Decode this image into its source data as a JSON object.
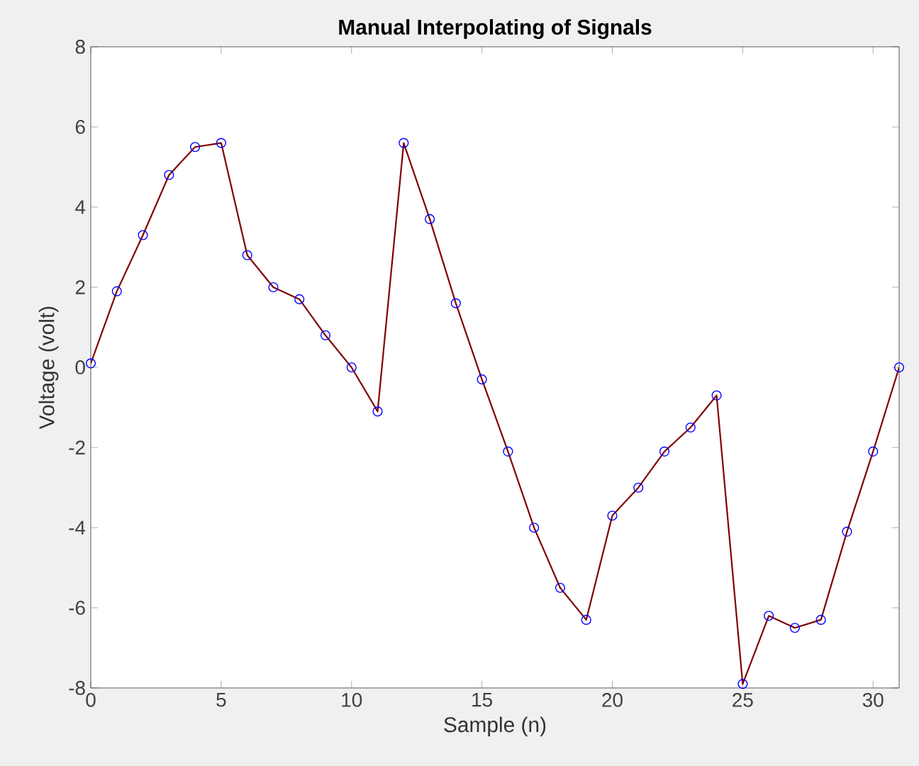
{
  "chart_data": {
    "type": "line",
    "title": "Manual Interpolating of Signals",
    "xlabel": "Sample (n)",
    "ylabel": "Voltage (volt)",
    "x": [
      0,
      1,
      2,
      3,
      4,
      5,
      6,
      7,
      8,
      9,
      10,
      11,
      12,
      13,
      14,
      15,
      16,
      17,
      18,
      19,
      20,
      21,
      22,
      23,
      24,
      25,
      26,
      27,
      28,
      29,
      30,
      31
    ],
    "series": [
      {
        "color": "#800000",
        "marker": "none",
        "line_style": "solid",
        "values": [
          0.1,
          1.9,
          3.3,
          4.8,
          5.5,
          5.6,
          2.8,
          2.0,
          1.7,
          0.8,
          0.0,
          -1.1,
          5.6,
          3.7,
          1.6,
          -0.3,
          -2.1,
          -4.0,
          -5.5,
          -6.3,
          -3.7,
          -3.0,
          -2.1,
          -1.5,
          -0.7,
          -7.9,
          -6.2,
          -6.5,
          -6.3,
          -4.1,
          -2.1,
          0.0
        ]
      },
      {
        "type": "scatter",
        "color": "#0000ff",
        "marker": "circle",
        "values": [
          0.1,
          1.9,
          3.3,
          4.8,
          5.5,
          5.6,
          2.8,
          2.0,
          1.7,
          0.8,
          0.0,
          -1.1,
          5.6,
          3.7,
          1.6,
          -0.3,
          -2.1,
          -4.0,
          -5.5,
          -6.3,
          -3.7,
          -3.0,
          -2.1,
          -1.5,
          -0.7,
          -7.9,
          -6.2,
          -6.5,
          -6.3,
          -4.1,
          -2.1,
          0.0
        ]
      }
    ],
    "xlim": [
      0,
      31
    ],
    "xticks": [
      0,
      5,
      10,
      15,
      20,
      25,
      30
    ],
    "ylim": [
      -8,
      8
    ],
    "yticks": [
      -8,
      -6,
      -4,
      -2,
      0,
      2,
      4,
      6,
      8
    ],
    "grid": false
  }
}
